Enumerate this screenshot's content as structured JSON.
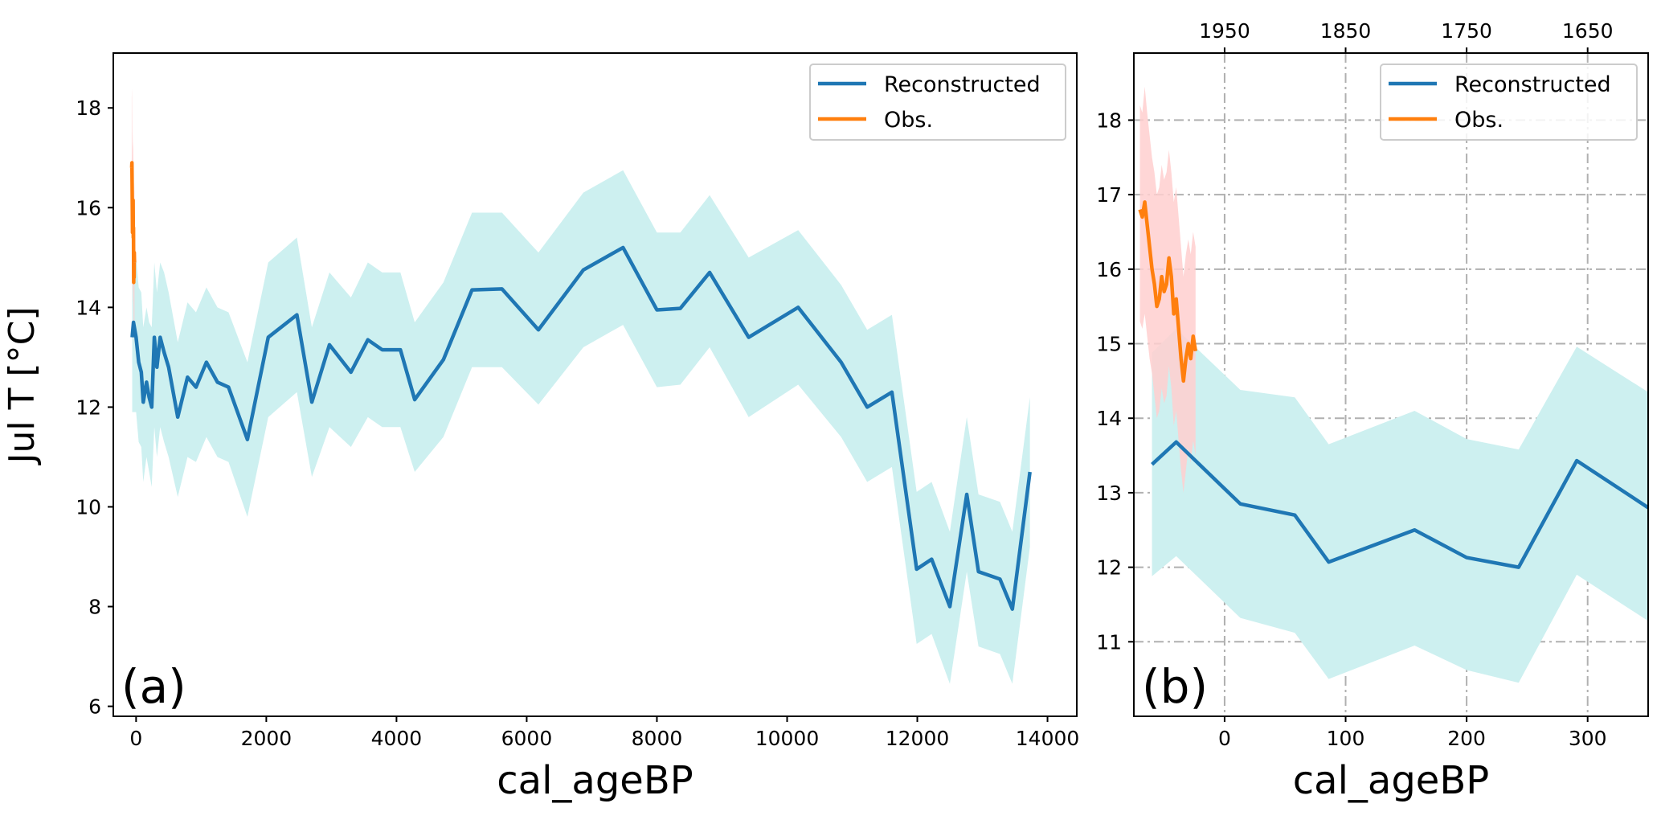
{
  "figure": {
    "background": "#ffffff"
  },
  "chart_data": [
    {
      "id": "a",
      "type": "line",
      "panel_label": "(a)",
      "xlabel": "cal_ageBP",
      "ylabel": "Jul T [°C]",
      "xlim": [
        -350,
        14450
      ],
      "ylim": [
        5.8,
        19.1
      ],
      "xticks": [
        0,
        2000,
        4000,
        6000,
        8000,
        10000,
        12000,
        14000
      ],
      "xtick_labels": [
        "0",
        "2000",
        "4000",
        "6000",
        "8000",
        "10000",
        "12000",
        "14000"
      ],
      "yticks": [
        6,
        8,
        10,
        12,
        14,
        16,
        18
      ],
      "ytick_labels": [
        "6",
        "8",
        "10",
        "12",
        "14",
        "16",
        "18"
      ],
      "grid": false,
      "legend": {
        "placement": "top-right",
        "entries": [
          "Reconstructed",
          "Obs."
        ]
      },
      "series": [
        {
          "name": "Reconstructed",
          "color": "#1f77b4",
          "band_color": "#cdf0f0",
          "x": [
            -60,
            -40,
            0,
            40,
            80,
            110,
            160,
            200,
            240,
            280,
            320,
            370,
            430,
            500,
            640,
            790,
            920,
            1080,
            1250,
            1420,
            1710,
            2030,
            2470,
            2700,
            2970,
            3300,
            3560,
            3780,
            4060,
            4280,
            4720,
            5160,
            5620,
            6180,
            6870,
            7480,
            8000,
            8360,
            8810,
            9410,
            10170,
            10830,
            11230,
            11610,
            11990,
            12220,
            12500,
            12760,
            12940,
            13270,
            13460,
            13730
          ],
          "y": [
            13.4,
            13.7,
            13.4,
            12.9,
            12.7,
            12.1,
            12.5,
            12.2,
            12.0,
            13.4,
            12.8,
            13.4,
            13.1,
            12.8,
            11.8,
            12.6,
            12.4,
            12.9,
            12.5,
            12.4,
            11.35,
            13.4,
            13.85,
            12.1,
            13.25,
            12.7,
            13.35,
            13.15,
            13.15,
            12.15,
            12.95,
            14.35,
            14.37,
            13.55,
            14.75,
            15.2,
            13.95,
            13.98,
            14.7,
            13.4,
            14.0,
            12.9,
            12.0,
            12.3,
            8.75,
            8.95,
            8.0,
            10.25,
            8.7,
            8.55,
            7.95,
            10.7
          ],
          "y_lower": [
            11.9,
            11.9,
            11.9,
            11.3,
            11.2,
            10.5,
            11.0,
            10.7,
            10.4,
            11.6,
            11.0,
            11.6,
            11.3,
            11.0,
            10.2,
            11.0,
            10.9,
            11.4,
            11.0,
            10.9,
            9.8,
            11.8,
            12.3,
            10.6,
            11.6,
            11.2,
            11.8,
            11.6,
            11.6,
            10.7,
            11.4,
            12.8,
            12.8,
            12.05,
            13.2,
            13.65,
            12.4,
            12.45,
            13.2,
            11.8,
            12.45,
            11.4,
            10.5,
            10.8,
            7.25,
            7.45,
            6.45,
            8.7,
            7.2,
            7.05,
            6.45,
            9.2
          ],
          "y_upper": [
            15.0,
            15.4,
            15.0,
            14.4,
            14.3,
            13.6,
            14.0,
            13.7,
            13.6,
            14.9,
            14.3,
            14.9,
            14.7,
            14.3,
            13.3,
            14.1,
            13.9,
            14.4,
            14.0,
            13.9,
            12.9,
            14.9,
            15.4,
            13.6,
            14.7,
            14.2,
            14.9,
            14.7,
            14.7,
            13.7,
            14.5,
            15.9,
            15.9,
            15.1,
            16.3,
            16.75,
            15.5,
            15.5,
            16.25,
            15.0,
            15.55,
            14.45,
            13.55,
            13.85,
            10.3,
            10.5,
            9.5,
            11.8,
            10.25,
            10.1,
            9.5,
            12.2
          ]
        },
        {
          "name": "Obs.",
          "color": "#ff7f0e",
          "band_color": "#ffcfcf",
          "x": [
            -67,
            -64,
            -61,
            -58,
            -55,
            -52,
            -49,
            -46,
            -43,
            -40,
            -37,
            -34,
            -31,
            -28,
            -25
          ],
          "y": [
            16.8,
            16.9,
            16.5,
            16.0,
            15.5,
            15.9,
            15.8,
            16.15,
            15.4,
            15.6,
            14.5,
            15.0,
            14.6,
            15.1,
            14.9
          ],
          "y_lower": [
            15.4,
            15.5,
            15.1,
            14.6,
            14.1,
            14.5,
            14.4,
            14.75,
            14.0,
            14.2,
            13.1,
            13.6,
            13.2,
            13.7,
            13.5
          ],
          "y_upper": [
            18.2,
            18.4,
            17.9,
            17.4,
            16.9,
            17.3,
            17.2,
            17.55,
            16.8,
            17.0,
            15.9,
            16.4,
            16.0,
            16.5,
            16.3
          ]
        }
      ]
    },
    {
      "id": "b",
      "type": "line",
      "panel_label": "(b)",
      "xlabel": "cal_ageBP",
      "ylabel": "",
      "xlim": [
        -75,
        350
      ],
      "ylim": [
        10.0,
        18.9
      ],
      "xticks": [
        0,
        100,
        200,
        300
      ],
      "xtick_labels": [
        "0",
        "100",
        "200",
        "300"
      ],
      "yticks": [
        11,
        12,
        13,
        14,
        15,
        16,
        17,
        18
      ],
      "ytick_labels": [
        "11",
        "12",
        "13",
        "14",
        "15",
        "16",
        "17",
        "18"
      ],
      "secondary_xticks": [
        1950,
        1850,
        1750,
        1650
      ],
      "secondary_xtick_labels": [
        "1950",
        "1850",
        "1750",
        "1650"
      ],
      "grid": true,
      "legend": {
        "placement": "top-right",
        "entries": [
          "Reconstructed",
          "Obs."
        ]
      },
      "series": [
        {
          "name": "Reconstructed",
          "color": "#1f77b4",
          "band_color": "#cdf0f0",
          "x": [
            -60,
            -40,
            13,
            58,
            86,
            157,
            200,
            243,
            291,
            350
          ],
          "y": [
            13.38,
            13.68,
            12.85,
            12.7,
            12.07,
            12.5,
            12.13,
            12.0,
            13.43,
            12.8
          ],
          "y_lower": [
            11.88,
            12.15,
            11.32,
            11.12,
            10.5,
            10.95,
            10.62,
            10.45,
            11.9,
            11.28
          ],
          "y_upper": [
            14.88,
            15.2,
            14.38,
            14.28,
            13.65,
            14.1,
            13.72,
            13.58,
            14.96,
            14.35
          ]
        },
        {
          "name": "Obs.",
          "color": "#ff7f0e",
          "band_color": "#ffcfcf",
          "x": [
            -70,
            -68,
            -66,
            -64,
            -62,
            -60,
            -58,
            -56,
            -54,
            -52,
            -50,
            -48,
            -46,
            -44,
            -42,
            -40,
            -38,
            -36,
            -34,
            -32,
            -30,
            -28,
            -26,
            -24
          ],
          "y": [
            16.8,
            16.7,
            16.9,
            16.6,
            16.3,
            16.0,
            15.8,
            15.5,
            15.6,
            15.9,
            15.7,
            15.8,
            16.15,
            15.9,
            15.4,
            15.6,
            15.2,
            14.8,
            14.5,
            14.8,
            15.0,
            14.8,
            15.1,
            14.9
          ],
          "y_lower": [
            15.3,
            15.2,
            15.4,
            15.1,
            14.8,
            14.6,
            14.3,
            14.0,
            14.1,
            14.4,
            14.2,
            14.3,
            14.7,
            14.4,
            13.9,
            14.1,
            13.7,
            13.3,
            13.0,
            13.3,
            13.6,
            13.4,
            13.7,
            13.5
          ],
          "y_upper": [
            18.2,
            18.1,
            18.45,
            18.1,
            17.8,
            17.5,
            17.3,
            17.0,
            17.1,
            17.4,
            17.2,
            17.3,
            17.6,
            17.3,
            16.9,
            17.1,
            16.7,
            16.3,
            15.9,
            16.2,
            16.4,
            16.2,
            16.5,
            16.3
          ]
        }
      ]
    }
  ]
}
